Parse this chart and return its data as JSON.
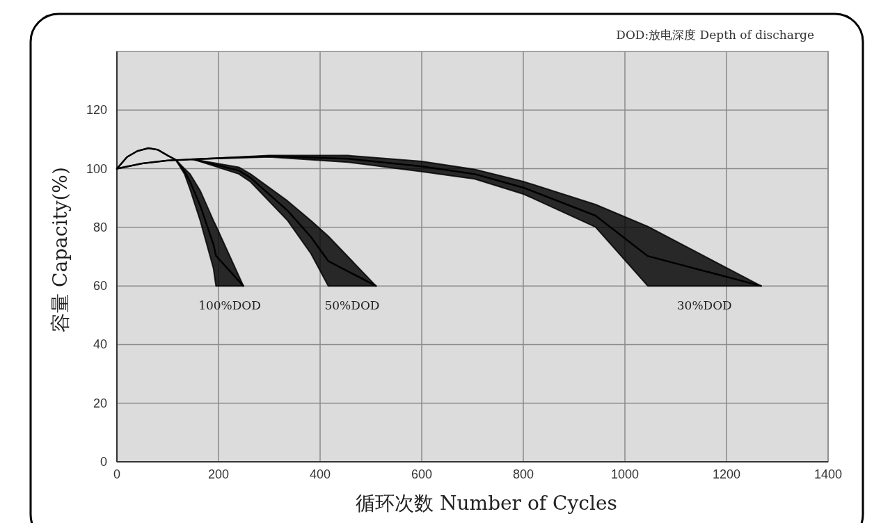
{
  "chart_data": {
    "type": "line",
    "xlabel": "循环次数 Number of Cycles",
    "ylabel": "容量 Capacity(%)",
    "annotations": [
      "DOD:放电深度 Depth of discharge"
    ],
    "series": [
      {
        "type": "line",
        "name": "100%DOD",
        "color": "#000000",
        "x": [
          0,
          20,
          40,
          62,
          80,
          100,
          116,
          133,
          144,
          164,
          190,
          195,
          249
        ],
        "values": [
          100,
          104,
          106,
          107,
          106.5,
          104.5,
          103,
          99.1,
          95.6,
          87.4,
          74.2,
          70.3,
          60
        ],
        "upper": [
          100,
          104,
          106,
          107,
          106.5,
          104.5,
          103,
          100,
          98.2,
          92.5,
          82.3,
          80.5,
          60
        ],
        "lower": [
          100,
          104,
          106,
          107,
          106.5,
          104.5,
          103,
          98.2,
          93,
          82.3,
          66,
          60,
          60
        ]
      },
      {
        "type": "line",
        "name": "50%DOD",
        "color": "#000000",
        "x": [
          0,
          50,
          100,
          150,
          240,
          263,
          336,
          382,
          416,
          510
        ],
        "values": [
          100,
          101.8,
          102.8,
          103.2,
          99.4,
          96.9,
          85.7,
          76.7,
          68.5,
          60
        ],
        "upper": [
          100,
          101.8,
          102.8,
          103.2,
          100.5,
          98.2,
          89,
          82.3,
          77,
          60
        ],
        "lower": [
          100,
          101.8,
          102.8,
          103.2,
          98.2,
          95.5,
          82.3,
          71,
          60,
          60
        ]
      },
      {
        "type": "line",
        "name": "30%DOD",
        "color": "#000000",
        "x": [
          150,
          300,
          455,
          600,
          704,
          801,
          942,
          1045,
          1268
        ],
        "values": [
          103.2,
          104.3,
          103.4,
          100.8,
          98.2,
          93.5,
          84,
          70.2,
          60
        ],
        "upper": [
          103.2,
          104.5,
          104.5,
          102.5,
          99.8,
          95.6,
          87.8,
          80.3,
          60
        ],
        "lower": [
          103.2,
          104,
          102.2,
          99,
          96.5,
          91.3,
          80.1,
          60,
          60
        ]
      }
    ],
    "xlim": [
      0,
      1400
    ],
    "xticks": [
      0,
      200,
      400,
      600,
      800,
      1000,
      1200,
      1400
    ],
    "ylim": [
      0,
      140
    ],
    "yticks": [
      0,
      20,
      40,
      60,
      80,
      100,
      120
    ],
    "grid": true
  }
}
